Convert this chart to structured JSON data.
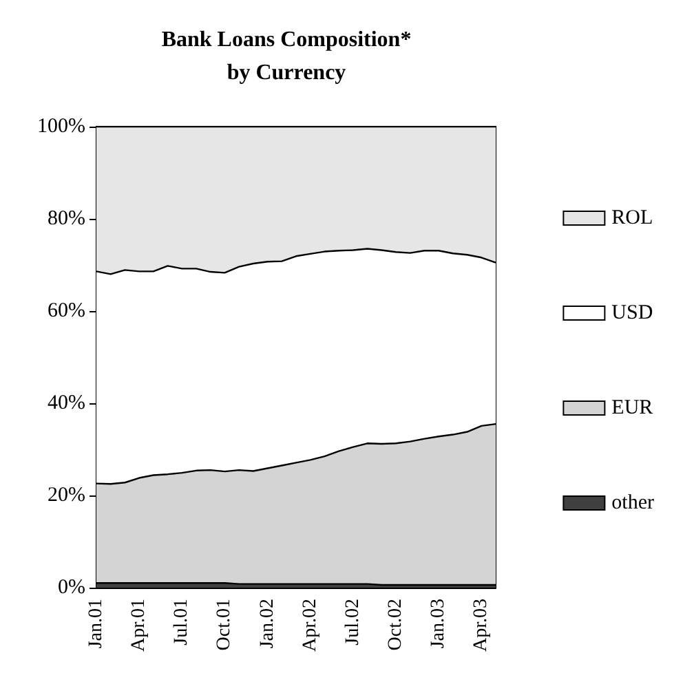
{
  "chart_data": {
    "type": "area",
    "title": "Bank Loans Composition*\nby Currency",
    "categories": [
      "Jan.01",
      null,
      null,
      "Apr.01",
      null,
      null,
      "Jul.01",
      null,
      null,
      "Oct.01",
      null,
      null,
      "Jan.02",
      null,
      null,
      "Apr.02",
      null,
      null,
      "Jul.02",
      null,
      null,
      "Oct.02",
      null,
      null,
      "Jan.03",
      null,
      null,
      "Apr.03",
      null
    ],
    "stacked": true,
    "series": [
      {
        "name": "other",
        "color": "#404040",
        "values": [
          1,
          1,
          1,
          1,
          1,
          1,
          1,
          1,
          1,
          1,
          0.8,
          0.8,
          0.8,
          0.8,
          0.8,
          0.8,
          0.8,
          0.8,
          0.8,
          0.8,
          0.6,
          0.6,
          0.6,
          0.6,
          0.6,
          0.6,
          0.6,
          0.6,
          0.6
        ]
      },
      {
        "name": "EUR",
        "color": "#d4d4d4",
        "values": [
          21.6,
          21.5,
          21.8,
          22.8,
          23.4,
          23.6,
          23.9,
          24.4,
          24.5,
          24.2,
          24.7,
          24.5,
          25.1,
          25.7,
          26.3,
          26.9,
          27.7,
          28.8,
          29.7,
          30.5,
          30.6,
          30.7,
          31.1,
          31.7,
          32.2,
          32.6,
          33.2,
          34.5,
          34.9
        ]
      },
      {
        "name": "USD",
        "color": "#ffffff",
        "values": [
          46.0,
          45.5,
          46.1,
          44.8,
          44.2,
          45.2,
          44.3,
          43.8,
          43.0,
          43.1,
          44.1,
          45.0,
          44.8,
          44.3,
          44.8,
          44.7,
          44.4,
          43.5,
          42.7,
          42.2,
          42.0,
          41.5,
          40.9,
          40.8,
          40.3,
          39.3,
          38.4,
          36.5,
          35.0
        ]
      },
      {
        "name": "ROL",
        "color": "#e6e6e6",
        "values": [
          31.4,
          32.0,
          31.1,
          31.4,
          31.4,
          30.2,
          30.8,
          30.8,
          31.5,
          31.7,
          30.4,
          29.7,
          29.3,
          29.2,
          28.1,
          27.6,
          27.1,
          26.9,
          26.8,
          26.5,
          26.8,
          27.2,
          27.4,
          26.9,
          26.9,
          27.5,
          27.8,
          28.4,
          29.5
        ]
      }
    ],
    "ylim": [
      0,
      100
    ],
    "yticks": [
      {
        "value": 0,
        "label": "0%"
      },
      {
        "value": 20,
        "label": "20%"
      },
      {
        "value": 40,
        "label": "40%"
      },
      {
        "value": 60,
        "label": "60%"
      },
      {
        "value": 80,
        "label": "80%"
      },
      {
        "value": 100,
        "label": "100%"
      }
    ],
    "grid": false,
    "legend": "right",
    "marker": "none"
  }
}
